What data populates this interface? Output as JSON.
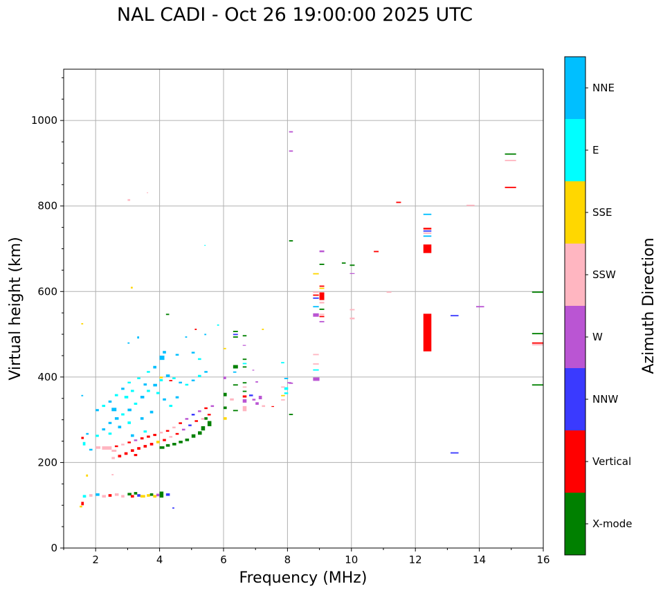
{
  "chart_data": {
    "type": "scatter",
    "title": "NAL CADI - Oct 26 19:00:00 2025 UTC",
    "xlabel": "Frequency (MHz)",
    "ylabel": "Virtual height (km)",
    "xlim": [
      1,
      16
    ],
    "ylim": [
      0,
      1120
    ],
    "xticks": [
      "2",
      "4",
      "6",
      "8",
      "10",
      "12",
      "14",
      "16"
    ],
    "xtick_values": [
      2,
      4,
      6,
      8,
      10,
      12,
      14,
      16
    ],
    "yticks": [
      "0",
      "200",
      "400",
      "600",
      "800",
      "1000"
    ],
    "ytick_values": [
      0,
      200,
      400,
      600,
      800,
      1000
    ],
    "grid": true,
    "colorbar": {
      "label": "Azimuth Direction",
      "categories": [
        "X-mode",
        "Vertical",
        "NNW",
        "W",
        "SSW",
        "SSE",
        "E",
        "NNE"
      ],
      "colors": [
        "#008000",
        "#ff0000",
        "#3a3aff",
        "#ba55d3",
        "#ffb6c1",
        "#ffd700",
        "#00ffff",
        "#00bfff"
      ]
    },
    "point_format": "[frequency_MHz, height_km, direction_index, optional_freq_span, optional_height_span]",
    "points": [
      [
        12.25,
        460,
        1,
        0.25,
        88
      ],
      [
        12.25,
        690,
        1,
        0.25,
        20
      ],
      [
        12.25,
        779,
        7,
        0.25,
        3
      ],
      [
        12.25,
        745,
        1,
        0.25,
        4
      ],
      [
        12.25,
        740,
        2,
        0.25,
        3
      ],
      [
        12.25,
        735,
        4,
        0.25,
        3
      ],
      [
        12.25,
        728,
        7,
        0.25,
        3
      ],
      [
        13.1,
        542,
        2,
        0.25,
        3
      ],
      [
        13.1,
        221,
        2,
        0.25,
        3
      ],
      [
        13.6,
        800,
        4,
        0.25,
        3
      ],
      [
        13.9,
        563,
        3,
        0.25,
        3
      ],
      [
        14.8,
        920,
        0,
        0.35,
        3
      ],
      [
        14.8,
        905,
        4,
        0.35,
        3
      ],
      [
        14.8,
        842,
        1,
        0.35,
        3
      ],
      [
        15.65,
        597,
        0,
        0.35,
        3
      ],
      [
        15.65,
        500,
        0,
        0.35,
        3
      ],
      [
        15.65,
        478,
        1,
        0.35,
        3
      ],
      [
        15.65,
        474,
        4,
        0.35,
        3
      ],
      [
        15.65,
        380,
        0,
        0.35,
        3
      ],
      [
        11.4,
        807,
        1,
        0.15,
        3
      ],
      [
        11.1,
        597,
        4,
        0.15,
        3
      ],
      [
        10.7,
        692,
        1,
        0.15,
        3
      ],
      [
        9.7,
        665,
        0,
        0.12,
        3
      ],
      [
        9.95,
        660,
        0,
        0.15,
        3
      ],
      [
        9.95,
        641,
        3,
        0.15,
        2
      ],
      [
        9.95,
        556,
        4,
        0.15,
        3
      ],
      [
        9.95,
        535,
        4,
        0.15,
        4
      ],
      [
        8.05,
        972,
        3,
        0.12,
        3
      ],
      [
        8.05,
        927,
        3,
        0.12,
        3
      ],
      [
        8.05,
        717,
        0,
        0.12,
        3
      ],
      [
        8.05,
        311,
        0,
        0.12,
        3
      ],
      [
        8.05,
        384,
        3,
        0.12,
        3
      ],
      [
        8.8,
        640,
        5,
        0.18,
        3
      ],
      [
        8.8,
        451,
        4,
        0.18,
        3
      ],
      [
        8.8,
        429,
        4,
        0.18,
        3
      ],
      [
        8.8,
        415,
        6,
        0.18,
        3
      ],
      [
        8.8,
        391,
        3,
        0.2,
        8
      ],
      [
        8.8,
        597,
        4,
        0.18,
        3
      ],
      [
        8.8,
        590,
        1,
        0.18,
        3
      ],
      [
        8.8,
        583,
        2,
        0.18,
        3
      ],
      [
        8.8,
        563,
        7,
        0.18,
        3
      ],
      [
        8.8,
        541,
        3,
        0.18,
        8
      ],
      [
        9.0,
        692,
        3,
        0.15,
        4
      ],
      [
        9.0,
        662,
        0,
        0.15,
        3
      ],
      [
        9.0,
        611,
        1,
        0.15,
        3
      ],
      [
        9.0,
        606,
        5,
        0.15,
        3
      ],
      [
        9.0,
        580,
        1,
        0.15,
        18
      ],
      [
        9.0,
        572,
        4,
        0.15,
        4
      ],
      [
        9.0,
        557,
        0,
        0.15,
        3
      ],
      [
        9.0,
        545,
        4,
        0.15,
        3
      ],
      [
        9.0,
        540,
        1,
        0.15,
        3
      ],
      [
        9.0,
        528,
        3,
        0.15,
        3
      ],
      [
        7.8,
        432,
        6,
        0.1,
        3
      ],
      [
        7.9,
        395,
        7,
        0.12,
        3
      ],
      [
        7.9,
        370,
        6,
        0.12,
        6
      ],
      [
        7.9,
        360,
        6,
        0.12,
        4
      ],
      [
        7.8,
        355,
        5,
        0.12,
        3
      ],
      [
        7.8,
        375,
        4,
        0.12,
        3
      ],
      [
        7.8,
        345,
        4,
        0.12,
        3
      ],
      [
        8.0,
        385,
        3,
        0.12,
        3
      ],
      [
        6.3,
        505,
        0,
        0.15,
        3
      ],
      [
        6.3,
        498,
        2,
        0.15,
        3
      ],
      [
        6.3,
        492,
        0,
        0.15,
        3
      ],
      [
        6.6,
        495,
        0,
        0.12,
        3
      ],
      [
        6.6,
        473,
        3,
        0.1,
        2
      ],
      [
        6.3,
        420,
        0,
        0.15,
        8
      ],
      [
        6.6,
        440,
        0,
        0.12,
        3
      ],
      [
        6.6,
        430,
        6,
        0.12,
        3
      ],
      [
        6.6,
        422,
        0,
        0.12,
        3
      ],
      [
        6.6,
        385,
        0,
        0.12,
        3
      ],
      [
        6.3,
        380,
        0,
        0.15,
        3
      ],
      [
        6.6,
        375,
        4,
        0.12,
        3
      ],
      [
        6.6,
        365,
        0,
        0.12,
        3
      ],
      [
        6.6,
        340,
        3,
        0.12,
        8
      ],
      [
        6.6,
        320,
        4,
        0.12,
        12
      ],
      [
        6.6,
        352,
        1,
        0.12,
        5
      ],
      [
        6.8,
        355,
        2,
        0.12,
        4
      ],
      [
        6.9,
        345,
        3,
        0.1,
        4
      ],
      [
        7.0,
        335,
        3,
        0.1,
        6
      ],
      [
        7.1,
        348,
        3,
        0.1,
        8
      ],
      [
        7.2,
        330,
        4,
        0.1,
        4
      ],
      [
        7.0,
        387,
        3,
        0.08,
        3
      ],
      [
        7.2,
        510,
        5,
        0.06,
        3
      ],
      [
        6.9,
        415,
        3,
        0.06,
        2
      ],
      [
        7.5,
        330,
        1,
        0.08,
        2
      ],
      [
        6.0,
        465,
        5,
        0.08,
        3
      ],
      [
        6.0,
        395,
        3,
        0.08,
        6
      ],
      [
        6.0,
        355,
        0,
        0.1,
        8
      ],
      [
        6.0,
        325,
        0,
        0.1,
        6
      ],
      [
        6.3,
        410,
        7,
        0.1,
        3
      ],
      [
        6.2,
        345,
        4,
        0.12,
        5
      ],
      [
        6.0,
        300,
        5,
        0.1,
        6
      ],
      [
        6.3,
        320,
        0,
        0.15,
        3
      ],
      [
        5.5,
        285,
        0,
        0.12,
        12
      ],
      [
        5.3,
        275,
        0,
        0.12,
        10
      ],
      [
        5.4,
        300,
        0,
        0.1,
        6
      ],
      [
        5.2,
        265,
        0,
        0.12,
        8
      ],
      [
        5.0,
        258,
        0,
        0.12,
        8
      ],
      [
        4.8,
        250,
        0,
        0.12,
        6
      ],
      [
        4.6,
        245,
        0,
        0.12,
        6
      ],
      [
        4.4,
        240,
        0,
        0.12,
        6
      ],
      [
        4.2,
        237,
        0,
        0.12,
        6
      ],
      [
        4.0,
        232,
        0,
        0.15,
        6
      ],
      [
        5.5,
        310,
        1,
        0.1,
        4
      ],
      [
        5.3,
        300,
        4,
        0.1,
        4
      ],
      [
        5.1,
        295,
        1,
        0.1,
        4
      ],
      [
        4.9,
        285,
        2,
        0.1,
        4
      ],
      [
        4.7,
        275,
        3,
        0.1,
        4
      ],
      [
        4.5,
        265,
        1,
        0.1,
        4
      ],
      [
        4.3,
        258,
        4,
        0.1,
        4
      ],
      [
        4.1,
        250,
        1,
        0.1,
        5
      ],
      [
        3.9,
        245,
        5,
        0.1,
        6
      ],
      [
        3.7,
        240,
        1,
        0.1,
        6
      ],
      [
        3.5,
        235,
        1,
        0.1,
        6
      ],
      [
        3.3,
        230,
        1,
        0.1,
        6
      ],
      [
        3.1,
        225,
        1,
        0.1,
        6
      ],
      [
        2.9,
        218,
        1,
        0.1,
        6
      ],
      [
        2.7,
        212,
        1,
        0.1,
        6
      ],
      [
        2.5,
        208,
        4,
        0.1,
        5
      ],
      [
        3.2,
        215,
        1,
        0.1,
        5
      ],
      [
        5.6,
        330,
        3,
        0.1,
        4
      ],
      [
        5.4,
        325,
        1,
        0.1,
        4
      ],
      [
        5.2,
        318,
        3,
        0.1,
        4
      ],
      [
        5.0,
        310,
        2,
        0.1,
        4
      ],
      [
        4.8,
        300,
        3,
        0.1,
        4
      ],
      [
        4.6,
        290,
        1,
        0.1,
        4
      ],
      [
        4.4,
        280,
        4,
        0.1,
        4
      ],
      [
        4.2,
        272,
        1,
        0.1,
        4
      ],
      [
        4.0,
        268,
        4,
        0.1,
        4
      ],
      [
        3.8,
        262,
        1,
        0.1,
        5
      ],
      [
        3.6,
        258,
        1,
        0.1,
        5
      ],
      [
        3.4,
        254,
        1,
        0.1,
        5
      ],
      [
        3.2,
        250,
        3,
        0.1,
        4
      ],
      [
        3.0,
        245,
        1,
        0.1,
        4
      ],
      [
        2.8,
        240,
        4,
        0.1,
        4
      ],
      [
        2.6,
        236,
        1,
        0.1,
        4
      ],
      [
        2.2,
        230,
        4,
        0.3,
        8
      ],
      [
        2.0,
        232,
        4,
        0.15,
        6
      ],
      [
        2.5,
        225,
        4,
        0.15,
        5
      ],
      [
        1.8,
        228,
        7,
        0.1,
        4
      ],
      [
        1.6,
        240,
        6,
        0.08,
        8
      ],
      [
        1.55,
        255,
        1,
        0.08,
        5
      ],
      [
        1.7,
        265,
        7,
        0.08,
        4
      ],
      [
        2.0,
        260,
        6,
        0.1,
        5
      ],
      [
        2.2,
        275,
        7,
        0.1,
        5
      ],
      [
        2.4,
        290,
        7,
        0.1,
        5
      ],
      [
        2.6,
        300,
        7,
        0.12,
        6
      ],
      [
        2.8,
        310,
        6,
        0.1,
        5
      ],
      [
        3.0,
        320,
        7,
        0.12,
        6
      ],
      [
        3.2,
        335,
        6,
        0.1,
        5
      ],
      [
        3.4,
        350,
        7,
        0.12,
        6
      ],
      [
        3.6,
        365,
        6,
        0.1,
        5
      ],
      [
        3.8,
        378,
        7,
        0.12,
        6
      ],
      [
        4.0,
        390,
        6,
        0.1,
        5
      ],
      [
        4.2,
        400,
        7,
        0.12,
        6
      ],
      [
        4.4,
        395,
        6,
        0.1,
        4
      ],
      [
        4.6,
        385,
        7,
        0.1,
        4
      ],
      [
        4.8,
        380,
        6,
        0.1,
        4
      ],
      [
        5.0,
        390,
        7,
        0.1,
        4
      ],
      [
        5.2,
        400,
        6,
        0.1,
        5
      ],
      [
        5.4,
        410,
        7,
        0.1,
        4
      ],
      [
        5.2,
        440,
        6,
        0.1,
        4
      ],
      [
        5.0,
        455,
        7,
        0.1,
        4
      ],
      [
        4.0,
        440,
        7,
        0.15,
        10
      ],
      [
        4.1,
        455,
        7,
        0.1,
        6
      ],
      [
        3.8,
        420,
        7,
        0.1,
        6
      ],
      [
        3.6,
        410,
        6,
        0.1,
        4
      ],
      [
        3.3,
        395,
        6,
        0.1,
        4
      ],
      [
        3.0,
        385,
        6,
        0.1,
        4
      ],
      [
        2.8,
        370,
        7,
        0.1,
        5
      ],
      [
        2.6,
        355,
        6,
        0.1,
        5
      ],
      [
        2.4,
        340,
        7,
        0.1,
        5
      ],
      [
        2.2,
        330,
        6,
        0.1,
        5
      ],
      [
        2.0,
        320,
        7,
        0.1,
        5
      ],
      [
        2.5,
        320,
        7,
        0.15,
        8
      ],
      [
        2.9,
        350,
        6,
        0.12,
        6
      ],
      [
        3.1,
        365,
        6,
        0.1,
        5
      ],
      [
        3.5,
        380,
        7,
        0.1,
        5
      ],
      [
        3.9,
        360,
        6,
        0.1,
        5
      ],
      [
        4.1,
        345,
        7,
        0.1,
        5
      ],
      [
        3.4,
        300,
        7,
        0.1,
        6
      ],
      [
        3.0,
        290,
        6,
        0.1,
        6
      ],
      [
        2.7,
        280,
        7,
        0.1,
        6
      ],
      [
        2.4,
        265,
        6,
        0.1,
        5
      ],
      [
        3.7,
        315,
        7,
        0.1,
        6
      ],
      [
        4.3,
        330,
        6,
        0.1,
        5
      ],
      [
        4.5,
        350,
        7,
        0.1,
        5
      ],
      [
        3.1,
        260,
        7,
        0.1,
        6
      ],
      [
        3.5,
        270,
        6,
        0.1,
        5
      ],
      [
        5.8,
        520,
        6,
        0.06,
        3
      ],
      [
        5.4,
        498,
        7,
        0.06,
        3
      ],
      [
        4.5,
        450,
        7,
        0.1,
        4
      ],
      [
        4.8,
        492,
        7,
        0.06,
        3
      ],
      [
        5.1,
        510,
        1,
        0.06,
        3
      ],
      [
        3.0,
        478,
        7,
        0.06,
        3
      ],
      [
        3.3,
        490,
        7,
        0.06,
        5
      ],
      [
        3.1,
        607,
        5,
        0.06,
        4
      ],
      [
        5.4,
        707,
        6,
        0.04,
        2
      ],
      [
        4.2,
        545,
        0,
        0.1,
        3
      ],
      [
        3.0,
        812,
        4,
        0.08,
        4
      ],
      [
        3.6,
        830,
        4,
        0.04,
        2
      ],
      [
        1.55,
        523,
        5,
        0.06,
        3
      ],
      [
        1.55,
        355,
        7,
        0.06,
        3
      ],
      [
        4.0,
        397,
        5,
        0.1,
        4
      ],
      [
        4.3,
        390,
        1,
        0.1,
        3
      ],
      [
        1.6,
        118,
        6,
        0.1,
        6
      ],
      [
        1.8,
        120,
        4,
        0.1,
        6
      ],
      [
        2.0,
        122,
        7,
        0.12,
        6
      ],
      [
        2.2,
        118,
        4,
        0.12,
        6
      ],
      [
        2.4,
        120,
        1,
        0.1,
        6
      ],
      [
        2.6,
        122,
        4,
        0.12,
        6
      ],
      [
        2.8,
        118,
        4,
        0.1,
        6
      ],
      [
        3.0,
        123,
        0,
        0.12,
        6
      ],
      [
        3.1,
        118,
        1,
        0.1,
        6
      ],
      [
        3.2,
        125,
        0,
        0.1,
        6
      ],
      [
        3.3,
        120,
        2,
        0.1,
        6
      ],
      [
        3.4,
        118,
        5,
        0.15,
        6
      ],
      [
        3.6,
        120,
        5,
        0.1,
        6
      ],
      [
        3.7,
        122,
        0,
        0.1,
        6
      ],
      [
        3.8,
        118,
        5,
        0.1,
        6
      ],
      [
        3.9,
        121,
        3,
        0.1,
        6
      ],
      [
        4.0,
        118,
        0,
        0.12,
        14
      ],
      [
        4.2,
        122,
        2,
        0.12,
        6
      ],
      [
        4.4,
        92,
        2,
        0.06,
        3
      ],
      [
        1.55,
        100,
        1,
        0.08,
        8
      ],
      [
        1.7,
        167,
        5,
        0.06,
        5
      ],
      [
        2.5,
        170,
        4,
        0.06,
        3
      ],
      [
        1.5,
        95,
        5,
        0.08,
        4
      ]
    ]
  }
}
